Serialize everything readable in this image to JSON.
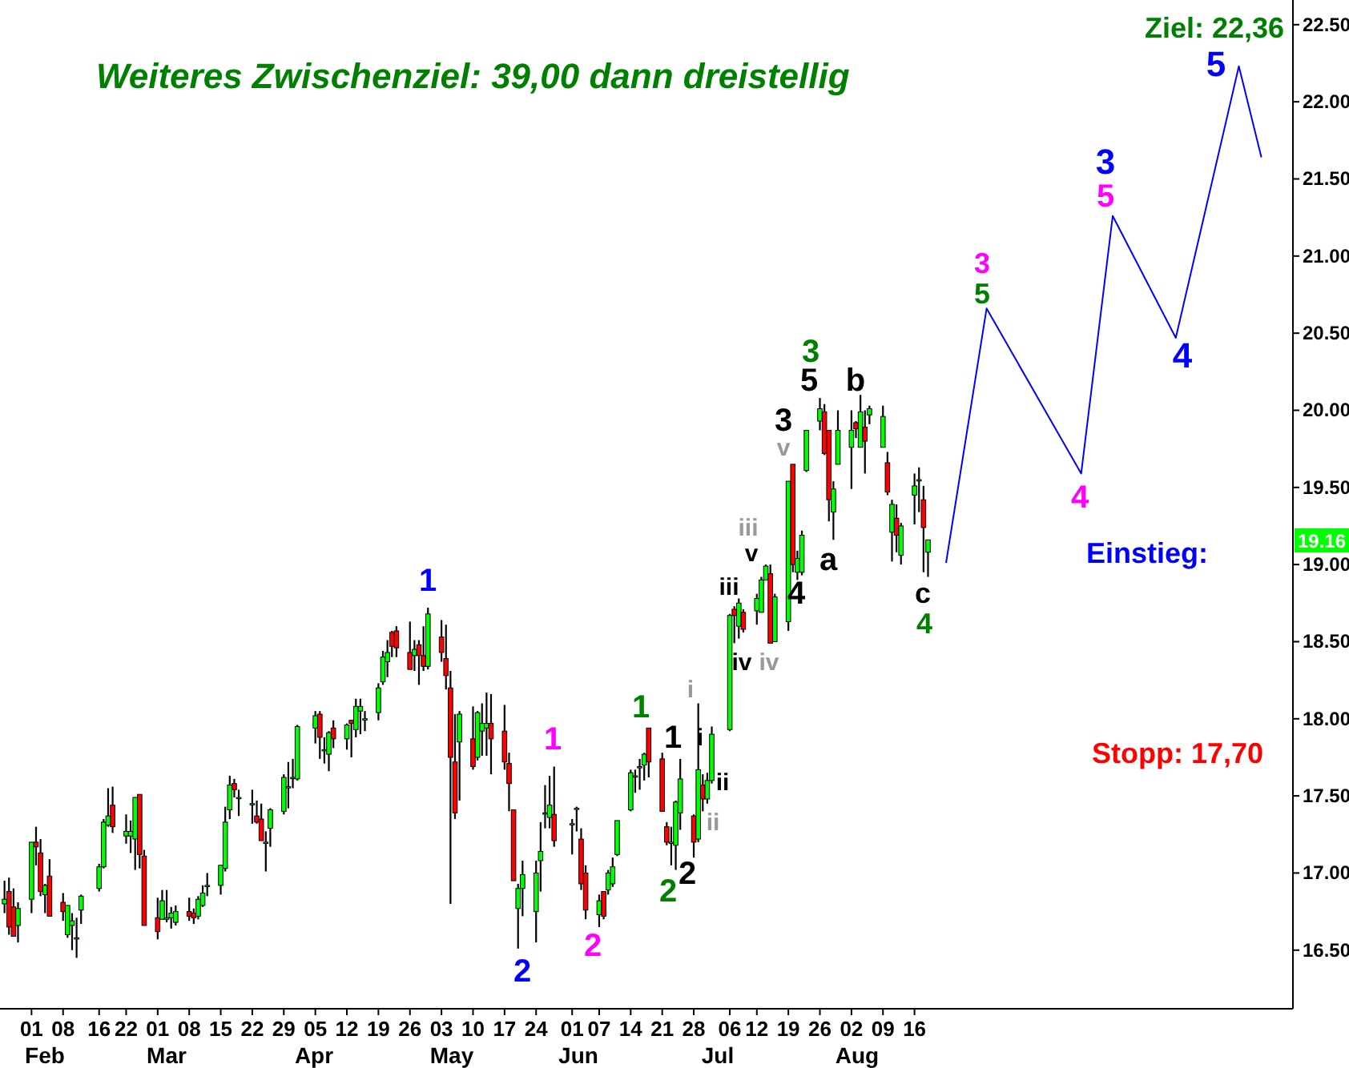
{
  "chart_data": {
    "type": "candlestick",
    "title": "Weiteres Zwischenziel: 39,00 dann dreistellig",
    "x": [
      "--01-26",
      "--01-27",
      "--01-28",
      "--01-29",
      "--02-01",
      "--02-02",
      "--02-03",
      "--02-04",
      "--02-05",
      "--02-08",
      "--02-09",
      "--02-10",
      "--02-11",
      "--02-12",
      "--02-16",
      "--02-17",
      "--02-18",
      "--02-19",
      "--02-22",
      "--02-23",
      "--02-24",
      "--02-25",
      "--02-26",
      "--03-01",
      "--03-02",
      "--03-03",
      "--03-04",
      "--03-05",
      "--03-08",
      "--03-09",
      "--03-10",
      "--03-11",
      "--03-12",
      "--03-15",
      "--03-16",
      "--03-17",
      "--03-18",
      "--03-19",
      "--03-22",
      "--03-23",
      "--03-24",
      "--03-25",
      "--03-26",
      "--03-29",
      "--03-30",
      "--03-31",
      "--04-01",
      "--04-05",
      "--04-06",
      "--04-07",
      "--04-08",
      "--04-09",
      "--04-12",
      "--04-13",
      "--04-14",
      "--04-15",
      "--04-16",
      "--04-19",
      "--04-20",
      "--04-21",
      "--04-22",
      "--04-23",
      "--04-26",
      "--04-27",
      "--04-28",
      "--04-29",
      "--04-30",
      "--05-03",
      "--05-04",
      "--05-05",
      "--05-06",
      "--05-07",
      "--05-10",
      "--05-11",
      "--05-12",
      "--05-13",
      "--05-14",
      "--05-17",
      "--05-18",
      "--05-19",
      "--05-20",
      "--05-21",
      "--05-24",
      "--05-25",
      "--05-26",
      "--05-27",
      "--05-28",
      "--06-01",
      "--06-02",
      "--06-03",
      "--06-04",
      "--06-07",
      "--06-08",
      "--06-09",
      "--06-10",
      "--06-11",
      "--06-14",
      "--06-15",
      "--06-16",
      "--06-17",
      "--06-18",
      "--06-21",
      "--06-22",
      "--06-23",
      "--06-24",
      "--06-25",
      "--06-28",
      "--06-29",
      "--06-30",
      "--07-01",
      "--07-02",
      "--07-06",
      "--07-07",
      "--07-08",
      "--07-09",
      "--07-12",
      "--07-13",
      "--07-14",
      "--07-15",
      "--07-16",
      "--07-19",
      "--07-20",
      "--07-21",
      "--07-22",
      "--07-23",
      "--07-26",
      "--07-27",
      "--07-28",
      "--07-29",
      "--07-30",
      "--08-02",
      "--08-03",
      "--08-04",
      "--08-05",
      "--08-06",
      "--08-09",
      "--08-10",
      "--08-11",
      "--08-12",
      "--08-13",
      "--08-16",
      "--08-17",
      "--08-18",
      "--08-19"
    ],
    "ohlc": [
      [
        16.8,
        16.95,
        16.74,
        16.83
      ],
      [
        16.88,
        16.97,
        16.6,
        16.65
      ],
      [
        16.78,
        16.9,
        16.59,
        16.59
      ],
      [
        16.66,
        16.81,
        16.55,
        16.77
      ],
      [
        16.83,
        17.2,
        16.74,
        17.2
      ],
      [
        17.2,
        17.3,
        17.05,
        17.17
      ],
      [
        17.13,
        17.22,
        16.85,
        16.88
      ],
      [
        16.86,
        16.93,
        16.74,
        16.92
      ],
      [
        16.98,
        17.09,
        16.72,
        16.72
      ],
      [
        16.81,
        16.87,
        16.69,
        16.75
      ],
      [
        16.6,
        16.79,
        16.58,
        16.79
      ],
      [
        16.66,
        16.74,
        16.5,
        16.69
      ],
      [
        16.58,
        16.71,
        16.45,
        16.58
      ],
      [
        16.76,
        16.86,
        16.67,
        16.85
      ],
      [
        16.9,
        17.06,
        16.88,
        17.04
      ],
      [
        17.04,
        17.35,
        17.03,
        17.33
      ],
      [
        17.31,
        17.55,
        17.3,
        17.37
      ],
      [
        17.44,
        17.56,
        17.26,
        17.3
      ],
      [
        17.24,
        17.38,
        17.19,
        17.27
      ],
      [
        17.24,
        17.34,
        17.13,
        17.27
      ],
      [
        17.22,
        17.49,
        17.02,
        17.49
      ],
      [
        17.51,
        17.51,
        17.03,
        17.12
      ],
      [
        17.11,
        17.15,
        16.66,
        16.66
      ],
      [
        16.71,
        16.84,
        16.57,
        16.62
      ],
      [
        16.7,
        16.89,
        16.7,
        16.82
      ],
      [
        16.7,
        16.89,
        16.68,
        16.71
      ],
      [
        16.71,
        16.78,
        16.64,
        16.74
      ],
      [
        16.68,
        16.79,
        16.66,
        16.75
      ],
      [
        16.75,
        16.84,
        16.69,
        16.72
      ],
      [
        16.74,
        16.77,
        16.67,
        16.71
      ],
      [
        16.72,
        16.85,
        16.7,
        16.83
      ],
      [
        16.79,
        16.92,
        16.78,
        16.87
      ],
      [
        16.92,
        17.0,
        16.85,
        16.92
      ],
      [
        16.92,
        17.05,
        16.86,
        17.05
      ],
      [
        17.03,
        17.43,
        17.01,
        17.33
      ],
      [
        17.41,
        17.63,
        17.35,
        17.57
      ],
      [
        17.58,
        17.61,
        17.49,
        17.54
      ],
      [
        17.49,
        17.54,
        17.37,
        17.49
      ],
      [
        17.45,
        17.54,
        17.32,
        17.45
      ],
      [
        17.37,
        17.47,
        17.32,
        17.33
      ],
      [
        17.35,
        17.45,
        17.21,
        17.21
      ],
      [
        17.2,
        17.27,
        17.01,
        17.2
      ],
      [
        17.29,
        17.42,
        17.17,
        17.41
      ],
      [
        17.4,
        17.64,
        17.38,
        17.62
      ],
      [
        17.56,
        17.72,
        17.42,
        17.56
      ],
      [
        17.62,
        17.74,
        17.55,
        17.62
      ],
      [
        17.61,
        17.96,
        17.6,
        17.95
      ],
      [
        17.94,
        18.05,
        17.84,
        18.02
      ],
      [
        18.03,
        18.05,
        17.74,
        17.88
      ],
      [
        17.8,
        17.88,
        17.71,
        17.8
      ],
      [
        17.77,
        17.92,
        17.66,
        17.91
      ],
      [
        17.94,
        17.99,
        17.81,
        17.87
      ],
      [
        17.87,
        17.97,
        17.8,
        17.96
      ],
      [
        17.99,
        17.99,
        17.75,
        17.97
      ],
      [
        17.93,
        18.13,
        17.88,
        18.08
      ],
      [
        18.05,
        18.13,
        17.9,
        18.08
      ],
      [
        18.0,
        18.05,
        17.92,
        18.0
      ],
      [
        18.04,
        18.23,
        17.99,
        18.2
      ],
      [
        18.24,
        18.44,
        18.22,
        18.4
      ],
      [
        18.37,
        18.51,
        18.27,
        18.43
      ],
      [
        18.56,
        18.57,
        18.4,
        18.47
      ],
      [
        18.57,
        18.6,
        18.4,
        18.46
      ],
      [
        18.43,
        18.63,
        18.32,
        18.32
      ],
      [
        18.41,
        18.51,
        18.31,
        18.45
      ],
      [
        18.48,
        18.51,
        18.22,
        18.41
      ],
      [
        18.41,
        18.6,
        18.31,
        18.34
      ],
      [
        18.34,
        18.72,
        18.32,
        18.68
      ],
      [
        18.53,
        18.64,
        18.37,
        18.43
      ],
      [
        18.39,
        18.61,
        18.19,
        18.28
      ],
      [
        18.2,
        18.31,
        16.8,
        17.75
      ],
      [
        17.72,
        18.03,
        17.35,
        17.39
      ],
      [
        17.85,
        18.05,
        17.47,
        18.03
      ],
      [
        17.87,
        18.08,
        17.67,
        17.69
      ],
      [
        17.75,
        18.05,
        17.73,
        18.04
      ],
      [
        17.92,
        18.1,
        17.76,
        17.97
      ],
      [
        17.94,
        18.17,
        17.76,
        17.97
      ],
      [
        17.97,
        18.16,
        17.64,
        17.87
      ],
      [
        17.92,
        18.09,
        17.67,
        17.72
      ],
      [
        17.71,
        17.78,
        17.4,
        17.58
      ],
      [
        17.41,
        17.41,
        16.95,
        16.95
      ],
      [
        16.77,
        16.93,
        16.51,
        16.9
      ],
      [
        16.9,
        17.08,
        16.72,
        16.99
      ],
      [
        16.75,
        17.08,
        16.55,
        17.0
      ],
      [
        17.08,
        17.33,
        16.88,
        17.14
      ],
      [
        17.39,
        17.57,
        17.29,
        17.39
      ],
      [
        17.36,
        17.63,
        17.29,
        17.44
      ],
      [
        17.38,
        17.69,
        17.17,
        17.21
      ],
      [
        17.32,
        17.35,
        17.12,
        17.32
      ],
      [
        17.42,
        17.43,
        17.27,
        17.42
      ],
      [
        17.22,
        17.29,
        16.89,
        16.93
      ],
      [
        17.0,
        17.05,
        16.7,
        16.76
      ],
      [
        16.73,
        16.86,
        16.65,
        16.82
      ],
      [
        16.88,
        16.88,
        16.7,
        16.72
      ],
      [
        16.89,
        17.02,
        16.86,
        17.0
      ],
      [
        16.93,
        17.1,
        16.91,
        17.04
      ],
      [
        17.12,
        17.34,
        17.11,
        17.34
      ],
      [
        17.41,
        17.67,
        17.4,
        17.65
      ],
      [
        17.63,
        17.67,
        17.52,
        17.63
      ],
      [
        17.69,
        17.74,
        17.54,
        17.69
      ],
      [
        17.7,
        17.78,
        17.6,
        17.77
      ],
      [
        17.94,
        17.94,
        17.62,
        17.72
      ],
      [
        17.74,
        17.78,
        17.4,
        17.4
      ],
      [
        17.3,
        17.33,
        17.18,
        17.2
      ],
      [
        17.2,
        17.3,
        17.05,
        17.2
      ],
      [
        17.18,
        17.47,
        17.02,
        17.46
      ],
      [
        17.39,
        17.74,
        17.28,
        17.61
      ],
      [
        17.37,
        17.38,
        17.1,
        17.2
      ],
      [
        17.22,
        18.1,
        17.2,
        17.67
      ],
      [
        17.57,
        17.64,
        17.4,
        17.48
      ],
      [
        17.48,
        17.65,
        17.45,
        17.6
      ],
      [
        17.6,
        17.95,
        17.58,
        17.9
      ],
      [
        17.93,
        18.68,
        17.92,
        18.67
      ],
      [
        18.71,
        18.73,
        18.49,
        18.67
      ],
      [
        18.6,
        18.78,
        18.52,
        18.75
      ],
      [
        18.69,
        18.71,
        18.56,
        18.58
      ],
      [
        18.7,
        18.81,
        18.61,
        18.78
      ],
      [
        18.69,
        18.92,
        18.69,
        18.9
      ],
      [
        18.9,
        19.0,
        18.9,
        18.99
      ],
      [
        18.94,
        19.0,
        18.49,
        18.49
      ],
      [
        18.5,
        18.81,
        18.5,
        18.79
      ],
      [
        18.63,
        19.54,
        18.57,
        19.54
      ],
      [
        19.65,
        19.65,
        18.95,
        19.0
      ],
      [
        18.95,
        19.09,
        18.9,
        19.04
      ],
      [
        18.95,
        19.22,
        18.93,
        19.19
      ],
      [
        19.61,
        19.87,
        19.6,
        19.87
      ],
      [
        19.93,
        20.08,
        19.87,
        20.01
      ],
      [
        19.99,
        20.04,
        19.71,
        19.72
      ],
      [
        19.87,
        19.87,
        19.28,
        19.42
      ],
      [
        19.34,
        19.54,
        19.16,
        19.49
      ],
      [
        19.65,
        20.0,
        19.65,
        19.87
      ],
      [
        19.76,
        20.0,
        19.49,
        19.87
      ],
      [
        19.92,
        19.93,
        19.82,
        19.88
      ],
      [
        19.76,
        20.1,
        19.76,
        19.99
      ],
      [
        19.89,
        20.0,
        19.59,
        19.8
      ],
      [
        19.97,
        20.03,
        19.91,
        20.01
      ],
      [
        19.76,
        20.03,
        19.76,
        19.96
      ],
      [
        19.66,
        19.73,
        19.45,
        19.47
      ],
      [
        19.21,
        19.42,
        19.02,
        19.39
      ],
      [
        19.3,
        19.39,
        19.08,
        19.19
      ],
      [
        19.06,
        19.27,
        19.0,
        19.25
      ],
      [
        19.45,
        19.59,
        19.26,
        19.51
      ],
      [
        19.55,
        19.63,
        19.34,
        19.55
      ],
      [
        19.42,
        19.51,
        18.95,
        19.24
      ],
      [
        19.08,
        19.16,
        18.92,
        19.16
      ]
    ],
    "series": [
      {
        "type": "line",
        "color": "#0000ff",
        "x": [
          "--08-23",
          "--09-01",
          "--09-22",
          "--09-29",
          "--10-13",
          "--10-27",
          "--11-01"
        ],
        "values": [
          19.01,
          20.66,
          19.59,
          21.26,
          20.47,
          22.23,
          21.64
        ]
      }
    ],
    "xlim": [
      "--01-25",
      "--11-08"
    ],
    "xticks": [
      {
        "value": "--02-01",
        "label": "01"
      },
      {
        "value": "--02-08",
        "label": "08"
      },
      {
        "value": "--02-16",
        "label": "16"
      },
      {
        "value": "--02-22",
        "label": "22"
      },
      {
        "value": "--03-01",
        "label": "01"
      },
      {
        "value": "--03-08",
        "label": "08"
      },
      {
        "value": "--03-15",
        "label": "15"
      },
      {
        "value": "--03-22",
        "label": "22"
      },
      {
        "value": "--03-29",
        "label": "29"
      },
      {
        "value": "--04-05",
        "label": "05"
      },
      {
        "value": "--04-12",
        "label": "12"
      },
      {
        "value": "--04-19",
        "label": "19"
      },
      {
        "value": "--04-26",
        "label": "26"
      },
      {
        "value": "--05-03",
        "label": "03"
      },
      {
        "value": "--05-10",
        "label": "10"
      },
      {
        "value": "--05-17",
        "label": "17"
      },
      {
        "value": "--05-24",
        "label": "24"
      },
      {
        "value": "--06-01",
        "label": "01"
      },
      {
        "value": "--06-07",
        "label": "07"
      },
      {
        "value": "--06-14",
        "label": "14"
      },
      {
        "value": "--06-21",
        "label": "21"
      },
      {
        "value": "--06-28",
        "label": "28"
      },
      {
        "value": "--07-06",
        "label": "06"
      },
      {
        "value": "--07-12",
        "label": "12"
      },
      {
        "value": "--07-19",
        "label": "19"
      },
      {
        "value": "--07-26",
        "label": "26"
      },
      {
        "value": "--08-02",
        "label": "02"
      },
      {
        "value": "--08-09",
        "label": "09"
      },
      {
        "value": "--08-16",
        "label": "16"
      }
    ],
    "ylim": [
      16.12,
      22.66
    ],
    "yticks": [
      {
        "value": 16.5,
        "label": "16.50"
      },
      {
        "value": 17,
        "label": "17.00"
      },
      {
        "value": 17.5,
        "label": "17.50"
      },
      {
        "value": 18,
        "label": "18.00"
      },
      {
        "value": 18.5,
        "label": "18.50"
      },
      {
        "value": 19,
        "label": "19.00"
      },
      {
        "value": 19.5,
        "label": "19.50"
      },
      {
        "value": 20,
        "label": "20.00"
      },
      {
        "value": 20.5,
        "label": "20.50"
      },
      {
        "value": 21,
        "label": "21.00"
      },
      {
        "value": 21.5,
        "label": "21.50"
      },
      {
        "value": 22,
        "label": "22.00"
      },
      {
        "value": 22.5,
        "label": "22.50"
      }
    ],
    "annotations": [
      "Feb",
      "Mar",
      "Apr",
      "May",
      "Jun",
      "Jul",
      "Aug",
      "1",
      "2",
      "1",
      "2",
      "1",
      "2",
      "1",
      "2",
      "i",
      "i",
      "ii",
      "ii",
      "iii",
      "iv",
      "iii",
      "v",
      "iv",
      "3",
      "v",
      "4",
      "3",
      "5",
      "a",
      "b",
      "c",
      "4",
      "3",
      "5",
      "4",
      "3",
      "5",
      "4",
      "5",
      "Ziel: 22,36",
      "Einstieg:",
      "Stopp: 17,70",
      "19.16"
    ]
  }
}
